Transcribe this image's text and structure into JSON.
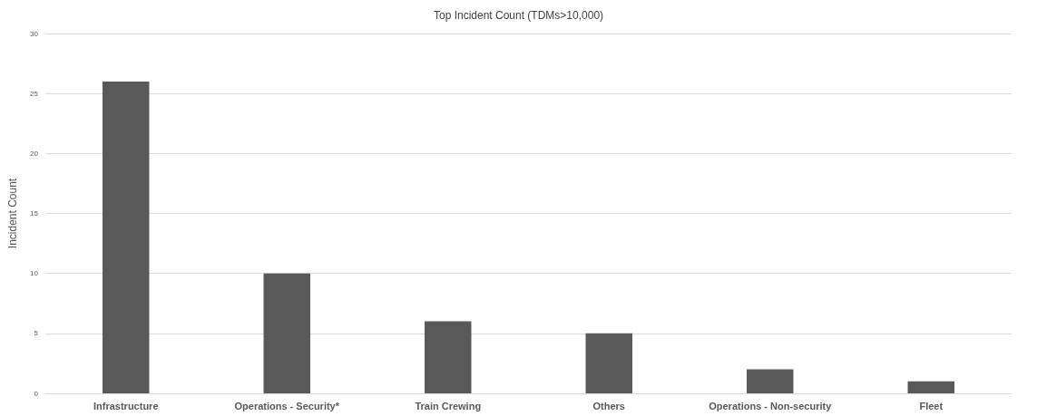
{
  "chart_data": {
    "type": "bar",
    "title": "Top Incident Count (TDMs>10,000)",
    "ylabel": "Incident Count",
    "categories": [
      "Infrastructure",
      "Operations - Security*",
      "Train Crewing",
      "Others",
      "Operations - Non-security",
      "Fleet"
    ],
    "values": [
      26,
      10,
      6,
      5,
      2,
      1
    ],
    "color": "#595959",
    "ylim": [
      0,
      30
    ],
    "yticks": [
      0,
      5,
      10,
      15,
      20,
      25,
      30
    ],
    "grid": "y"
  }
}
